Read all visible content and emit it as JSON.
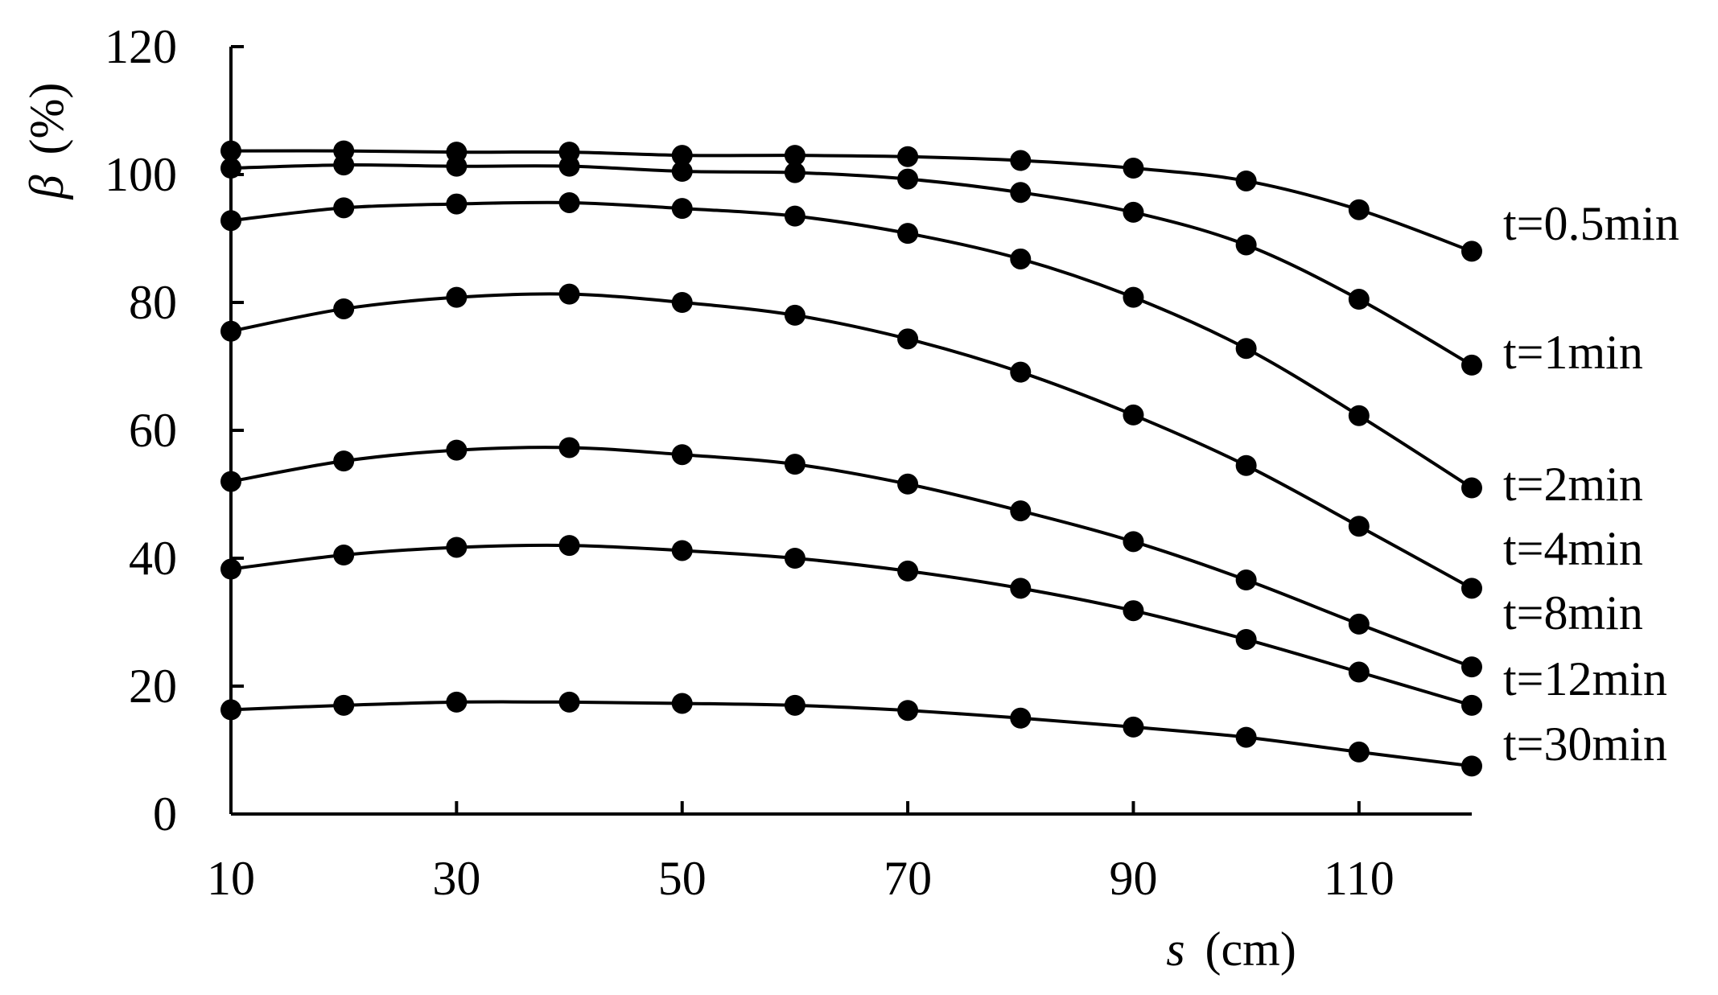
{
  "chart_data": {
    "type": "line",
    "title": "",
    "xlabel_var": "s",
    "xlabel_unit": "(cm)",
    "ylabel_var": "β",
    "ylabel_unit": "(%)",
    "xlim": [
      10,
      120
    ],
    "ylim": [
      0,
      120
    ],
    "x_ticks": [
      "10",
      "30",
      "50",
      "70",
      "90",
      "110"
    ],
    "x_tick_values": [
      10,
      30,
      50,
      70,
      90,
      110
    ],
    "y_ticks": [
      "0",
      "20",
      "40",
      "60",
      "80",
      "100",
      "120"
    ],
    "y_tick_values": [
      0,
      20,
      40,
      60,
      80,
      100,
      120
    ],
    "grid": false,
    "legend": "none",
    "x": [
      10,
      20,
      30,
      40,
      50,
      60,
      70,
      80,
      90,
      100,
      110,
      120
    ],
    "series": [
      {
        "name": "t=0.5min",
        "values": [
          103.7,
          103.7,
          103.5,
          103.5,
          103.0,
          103.0,
          102.8,
          102.2,
          101.0,
          99.0,
          94.5,
          88.0
        ]
      },
      {
        "name": "t=1min",
        "values": [
          101.0,
          101.5,
          101.3,
          101.3,
          100.5,
          100.3,
          99.3,
          97.2,
          94.1,
          89.0,
          80.5,
          70.2
        ]
      },
      {
        "name": "t=2min",
        "values": [
          92.8,
          94.8,
          95.4,
          95.6,
          94.7,
          93.5,
          90.8,
          86.8,
          80.8,
          72.8,
          62.3,
          51.0
        ]
      },
      {
        "name": "t=4min",
        "values": [
          75.5,
          79.0,
          80.8,
          81.3,
          80.0,
          78.0,
          74.3,
          69.1,
          62.4,
          54.5,
          45.0,
          35.3
        ]
      },
      {
        "name": "t=8min",
        "values": [
          52.0,
          55.2,
          56.9,
          57.3,
          56.2,
          54.7,
          51.6,
          47.4,
          42.6,
          36.6,
          29.7,
          23.0
        ]
      },
      {
        "name": "t=12min",
        "values": [
          38.3,
          40.5,
          41.7,
          42.0,
          41.2,
          40.0,
          38.0,
          35.3,
          31.8,
          27.3,
          22.2,
          17.0
        ]
      },
      {
        "name": "t=30min",
        "values": [
          16.3,
          17.0,
          17.5,
          17.5,
          17.3,
          17.0,
          16.2,
          15.0,
          13.6,
          12.0,
          9.7,
          7.5
        ]
      }
    ]
  }
}
